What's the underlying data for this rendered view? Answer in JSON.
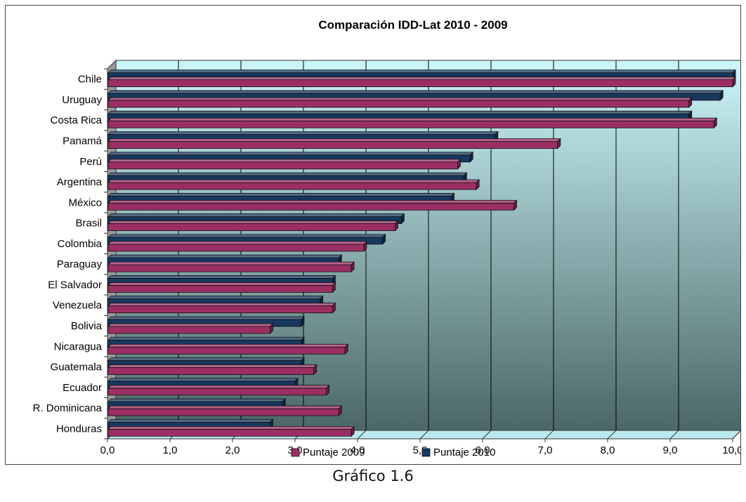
{
  "caption": "Gráfico 1.6",
  "colors": {
    "series_2009": "#9b2f63",
    "series_2010": "#17385f",
    "plot_top": "#cbf6fa",
    "plot_bottom": "#4b6766"
  },
  "chart_data": {
    "type": "bar",
    "orientation": "horizontal",
    "title": "Comparación IDD-Lat 2010 - 2009",
    "categories": [
      "Chile",
      "Uruguay",
      "Costa Rica",
      "Panamá",
      "Perú",
      "Argentina",
      "México",
      "Brasil",
      "Colombia",
      "Paraguay",
      "El Salvador",
      "Venezuela",
      "Bolivia",
      "Nicaragua",
      "Guatemala",
      "Ecuador",
      "R. Dominicana",
      "Honduras"
    ],
    "series": [
      {
        "name": "Puntaje 2009",
        "values": [
          10.0,
          9.3,
          9.7,
          7.2,
          5.6,
          5.9,
          6.5,
          4.6,
          4.1,
          3.9,
          3.6,
          3.6,
          2.6,
          3.8,
          3.3,
          3.5,
          3.7,
          3.9
        ]
      },
      {
        "name": "Puntaje 2010",
        "values": [
          10.0,
          9.8,
          9.3,
          6.2,
          5.8,
          5.7,
          5.5,
          4.7,
          4.4,
          3.7,
          3.6,
          3.4,
          3.1,
          3.1,
          3.1,
          3.0,
          2.8,
          2.6
        ]
      }
    ],
    "xlim": [
      0,
      10
    ],
    "xticks": [
      "0,0",
      "1,0",
      "2,0",
      "3,0",
      "4,0",
      "5,0",
      "6,0",
      "7,0",
      "8,0",
      "9,0",
      "10,0"
    ],
    "grid": true,
    "legend": "bottom"
  }
}
